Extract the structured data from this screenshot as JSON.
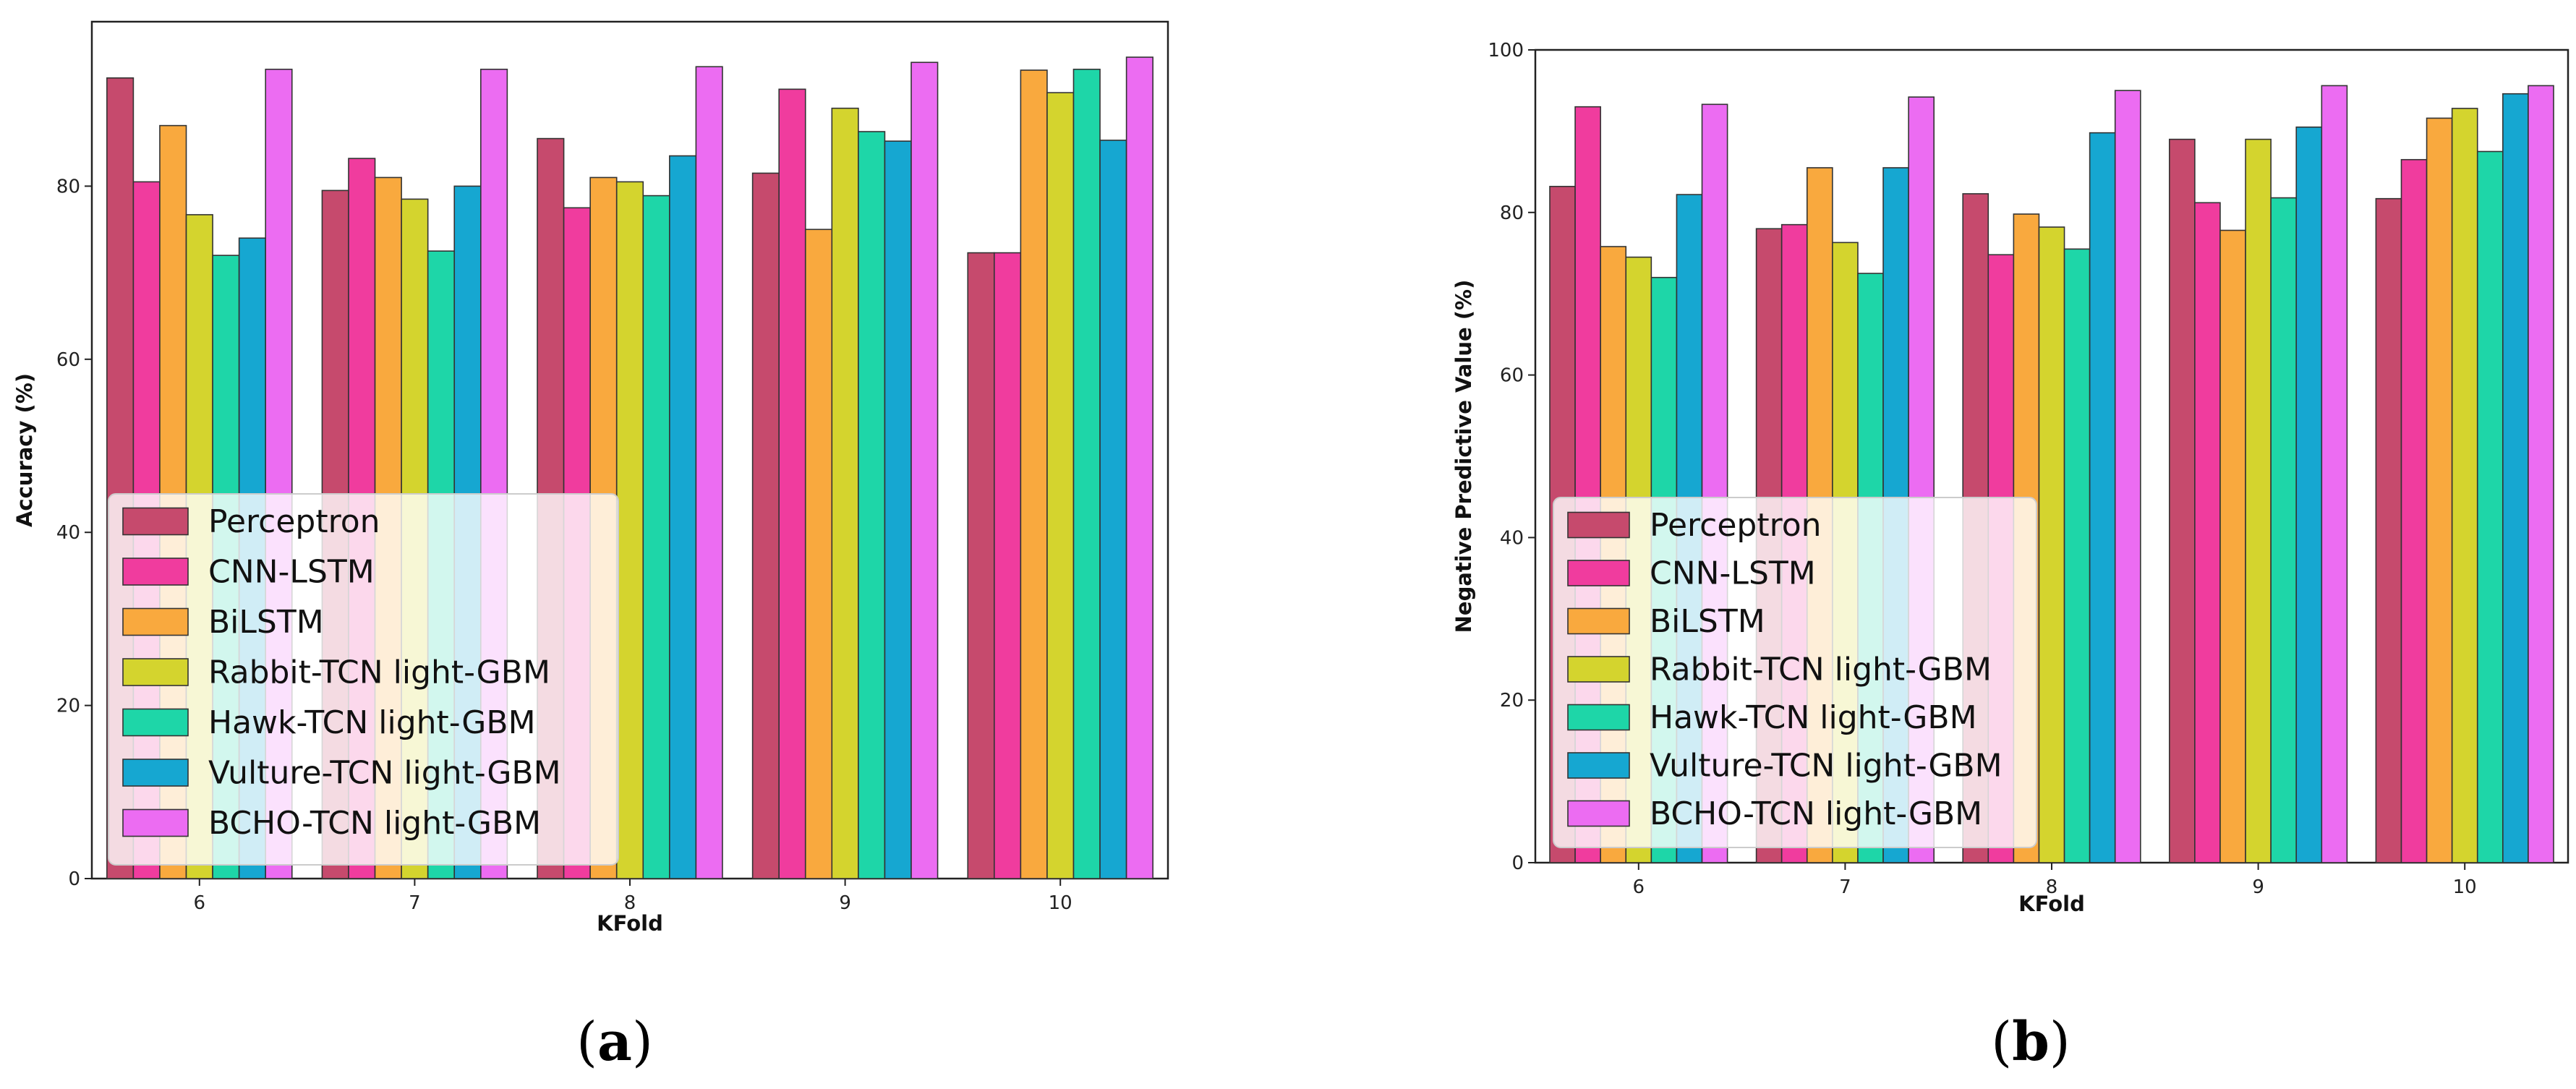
{
  "chart_data": [
    {
      "type": "bar",
      "panel_caption": {
        "open": "(",
        "letter": "a",
        "close": ")"
      },
      "xlabel": "KFold",
      "ylabel": "Accuracy (%)",
      "ylim": [
        0,
        99
      ],
      "yticks": [
        0,
        20,
        40,
        60,
        80
      ],
      "categories": [
        "6",
        "7",
        "8",
        "9",
        "10"
      ],
      "legend_position": "lower-left",
      "series": [
        {
          "name": "Perceptron",
          "color": "#c64a6d",
          "values": [
            92.5,
            79.5,
            85.5,
            81.5,
            72.3
          ]
        },
        {
          "name": "CNN-LSTM",
          "color": "#f03c9e",
          "values": [
            80.5,
            83.2,
            77.5,
            91.2,
            72.3
          ]
        },
        {
          "name": "BiLSTM",
          "color": "#f9a93e",
          "values": [
            87.0,
            81.0,
            81.0,
            75.0,
            93.4
          ]
        },
        {
          "name": "Rabbit-TCN light-GBM",
          "color": "#d4d42e",
          "values": [
            76.7,
            78.5,
            80.5,
            89.0,
            90.8
          ]
        },
        {
          "name": "Hawk-TCN light-GBM",
          "color": "#1ed6a8",
          "values": [
            72.0,
            72.5,
            78.9,
            86.3,
            93.5
          ]
        },
        {
          "name": "Vulture-TCN light-GBM",
          "color": "#16a7d1",
          "values": [
            74.0,
            80.0,
            83.5,
            85.2,
            85.3
          ]
        },
        {
          "name": "BCHO-TCN light-GBM",
          "color": "#ec6cf2",
          "values": [
            93.5,
            93.5,
            93.8,
            94.3,
            94.9
          ]
        }
      ]
    },
    {
      "type": "bar",
      "panel_caption": {
        "open": "(",
        "letter": "b",
        "close": ")"
      },
      "xlabel": "KFold",
      "ylabel": "Negative Predictive Value (%)",
      "ylim": [
        0,
        100
      ],
      "yticks": [
        0,
        20,
        40,
        60,
        80,
        100
      ],
      "categories": [
        "6",
        "7",
        "8",
        "9",
        "10"
      ],
      "legend_position": "lower-left",
      "series": [
        {
          "name": "Perceptron",
          "color": "#c64a6d",
          "values": [
            83.2,
            78.0,
            82.3,
            89.0,
            81.7
          ]
        },
        {
          "name": "CNN-LSTM",
          "color": "#f03c9e",
          "values": [
            93.0,
            78.5,
            74.8,
            81.2,
            86.5
          ]
        },
        {
          "name": "BiLSTM",
          "color": "#f9a93e",
          "values": [
            75.8,
            85.5,
            79.8,
            77.8,
            91.6
          ]
        },
        {
          "name": "Rabbit-TCN light-GBM",
          "color": "#d4d42e",
          "values": [
            74.5,
            76.3,
            78.2,
            89.0,
            92.8
          ]
        },
        {
          "name": "Hawk-TCN light-GBM",
          "color": "#1ed6a8",
          "values": [
            72.0,
            72.5,
            75.5,
            81.8,
            87.5
          ]
        },
        {
          "name": "Vulture-TCN light-GBM",
          "color": "#16a7d1",
          "values": [
            82.2,
            85.5,
            89.8,
            90.5,
            94.6
          ]
        },
        {
          "name": "BCHO-TCN light-GBM",
          "color": "#ec6cf2",
          "values": [
            93.3,
            94.2,
            95.0,
            95.6,
            95.6
          ]
        }
      ]
    }
  ]
}
